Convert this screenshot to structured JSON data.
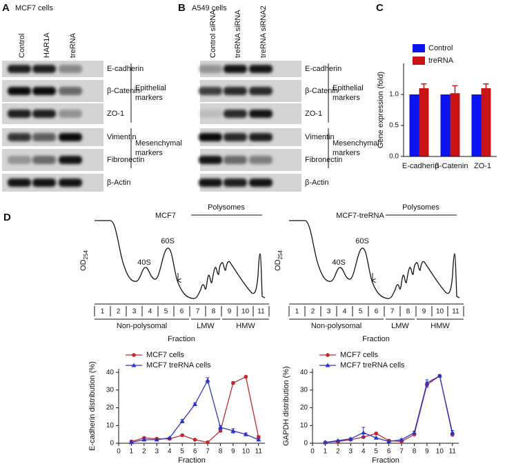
{
  "panels": [
    {
      "letter": "A",
      "title": "MCF7 cells",
      "lanes": [
        "Control",
        "HAR1A",
        "treRNA"
      ],
      "bands": [
        "E-cadherin",
        "β-Catenin",
        "ZO-1",
        "Vimentin",
        "Fibronectin",
        "β-Actin"
      ],
      "groups": [
        [
          "Epithelial",
          "markers"
        ],
        [
          "Mesenchymal",
          "markers"
        ]
      ]
    },
    {
      "letter": "B",
      "title": "A549 cells",
      "lanes": [
        "Control siRNA",
        "treRNA siRNA",
        "treRNA siRNA2"
      ],
      "bands": [
        "E-cadherin",
        "β-Catenin",
        "ZO-1",
        "Vimentin",
        "Fibronectin",
        "β-Actin"
      ],
      "groups": [
        [
          "Epithelial",
          "markers"
        ],
        [
          "Mesenchymal",
          "markers"
        ]
      ]
    }
  ],
  "panel_c_letter": "C",
  "panel_d_letter": "D",
  "profiles": [
    {
      "title": "MCF7",
      "polysomes": "Polysomes",
      "peaks": [
        "40S",
        "60S"
      ],
      "y_label": "OD",
      "y_label_sub": "254",
      "fractions": [
        1,
        2,
        3,
        4,
        5,
        6,
        7,
        8,
        9,
        10,
        11
      ],
      "groups": [
        "Non-polysomal",
        "LMW",
        "HMW"
      ],
      "x_label": "Fraction"
    },
    {
      "title": "MCF7-treRNA",
      "polysomes": "Polysomes",
      "peaks": [
        "40S",
        "60S"
      ],
      "y_label": "OD",
      "y_label_sub": "254",
      "fractions": [
        1,
        2,
        3,
        4,
        5,
        6,
        7,
        8,
        9,
        10,
        11
      ],
      "groups": [
        "Non-polysomal",
        "LMW",
        "HMW"
      ],
      "x_label": "Fraction"
    }
  ],
  "chart_data": [
    {
      "type": "bar",
      "y_label": "Gene expression (fold)",
      "categories": [
        "E-cadherin",
        "β-Catenin",
        "ZO-1"
      ],
      "series": [
        {
          "name": "Control",
          "color": "#0a14f0",
          "values": [
            1.0,
            1.0,
            1.0
          ]
        },
        {
          "name": "treRNA",
          "color": "#c81414",
          "values": [
            1.1,
            1.02,
            1.1
          ],
          "errors": [
            0.07,
            0.12,
            0.07
          ]
        }
      ],
      "ylim": [
        0,
        1.5
      ],
      "yticks": [
        {
          "value": 0,
          "label": "0.0"
        },
        {
          "value": 0.5,
          "label": "0.5"
        },
        {
          "value": 1,
          "label": "1.0"
        }
      ],
      "legend": "upper right"
    },
    {
      "type": "line",
      "x_label": "Fraction",
      "y_label": "E-cadherin distribution (%)",
      "x": [
        1,
        2,
        3,
        4,
        5,
        6,
        7,
        8,
        9,
        10,
        11
      ],
      "series": [
        {
          "name": "MCF7 cells",
          "color": "#c0282d",
          "marker": "circle",
          "values": [
            1,
            3,
            2.5,
            2.5,
            4.5,
            2,
            0.5,
            7,
            34,
            37.5,
            3.5
          ],
          "errors": [
            0.3,
            0.3,
            0.3,
            0.3,
            0.5,
            0.3,
            0.3,
            0.6,
            0.8,
            0.6,
            0.8
          ]
        },
        {
          "name": "MCF7 treRNA cells",
          "color": "#2a34c8",
          "marker": "triangle",
          "values": [
            0.5,
            2,
            2,
            3,
            12.5,
            22,
            35.5,
            9,
            7,
            5,
            2
          ],
          "errors": [
            0.3,
            0.3,
            0.3,
            0.3,
            1,
            0.8,
            1.5,
            1,
            1.2,
            0.8,
            0.5
          ]
        }
      ],
      "xlim": [
        0,
        11.5
      ],
      "xticks": [
        0,
        1,
        2,
        3,
        4,
        5,
        6,
        7,
        8,
        9,
        10,
        11
      ],
      "ylim": [
        0,
        42
      ],
      "yticks": [
        0,
        10,
        20,
        30,
        40
      ],
      "legend": "upper left"
    },
    {
      "type": "line",
      "x_label": "Fraction",
      "y_label": "GAPDH distribution (%)",
      "x": [
        1,
        2,
        3,
        4,
        5,
        6,
        7,
        8,
        9,
        10,
        11
      ],
      "series": [
        {
          "name": "MCF7 cells",
          "color": "#c0282d",
          "marker": "circle",
          "values": [
            0.5,
            1,
            2,
            3.5,
            5.5,
            1.5,
            1,
            5,
            33,
            38,
            5
          ],
          "errors": [
            0.3,
            0.3,
            0.3,
            0.5,
            0.4,
            0.3,
            0.3,
            0.6,
            1.5,
            0.6,
            1
          ]
        },
        {
          "name": "MCF7 treRNA cells",
          "color": "#2a34c8",
          "marker": "triangle",
          "values": [
            0.5,
            1.5,
            2.5,
            6,
            3,
            1,
            2,
            6,
            34,
            38,
            6
          ],
          "errors": [
            0.3,
            0.3,
            0.4,
            3,
            0.4,
            0.3,
            0.4,
            0.8,
            1.8,
            0.6,
            1.2
          ]
        }
      ],
      "xlim": [
        0,
        11.5
      ],
      "xticks": [
        0,
        1,
        2,
        3,
        4,
        5,
        6,
        7,
        8,
        9,
        10,
        11
      ],
      "ylim": [
        0,
        42
      ],
      "yticks": [
        0,
        10,
        20,
        30,
        40
      ],
      "legend": "upper left"
    }
  ]
}
